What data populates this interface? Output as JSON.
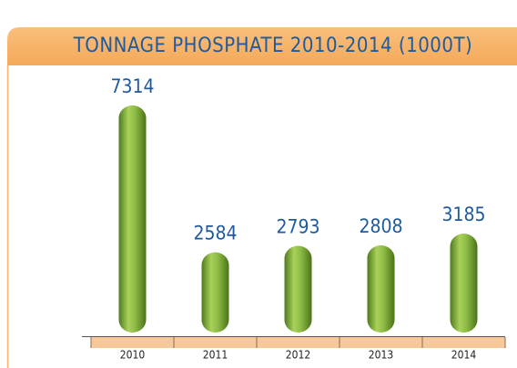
{
  "chart_data": {
    "type": "bar",
    "title": "TONNAGE PHOSPHATE 2010-2014 (1000T)",
    "categories": [
      "2010",
      "2011",
      "2012",
      "2013",
      "2014"
    ],
    "values": [
      7314,
      2584,
      2793,
      2808,
      3185
    ],
    "color": "#7aa63a"
  }
}
